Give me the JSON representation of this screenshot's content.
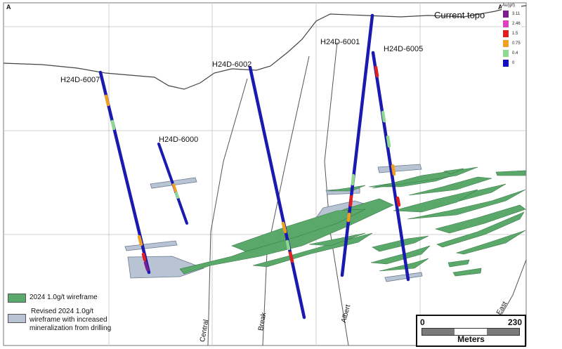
{
  "section": {
    "corner_left": "A",
    "corner_right": "A'",
    "topo_label": "Current topo"
  },
  "drillholes": [
    {
      "id": "H24D-6007"
    },
    {
      "id": "H24D-6000"
    },
    {
      "id": "H24D-6002"
    },
    {
      "id": "H24D-6001"
    },
    {
      "id": "H24D-6005"
    }
  ],
  "faults": [
    {
      "name": "Central"
    },
    {
      "name": "Break"
    },
    {
      "name": "Albert"
    },
    {
      "name": "East"
    }
  ],
  "grade_legend": {
    "title": "Au(g/t)",
    "bins": [
      {
        "value": "3.11",
        "color": "#7a1f8f"
      },
      {
        "value": "2.46",
        "color": "#e040c0"
      },
      {
        "value": "1.5",
        "color": "#e02020"
      },
      {
        "value": "0.75",
        "color": "#f0a020"
      },
      {
        "value": "0.4",
        "color": "#8fd88f"
      },
      {
        "value": "0",
        "color": "#1010c0"
      }
    ]
  },
  "legend": {
    "wireframe_2024": {
      "label": "2024 1.0g/t wireframe",
      "color": "#5aa86a"
    },
    "wireframe_revised": {
      "label_line1": "Revised 2024 1.0g/t",
      "label_line2": "wireframe with increased",
      "label_line3": "mineralization from drilling",
      "color": "#b8c4d4"
    }
  },
  "scale": {
    "start": "0",
    "end": "230",
    "unit": "Meters"
  },
  "colors": {
    "hole": "#1a1ab0",
    "green": "#5aa86a",
    "grey": "#b8c4d4",
    "grid": "#c8c8c8"
  }
}
